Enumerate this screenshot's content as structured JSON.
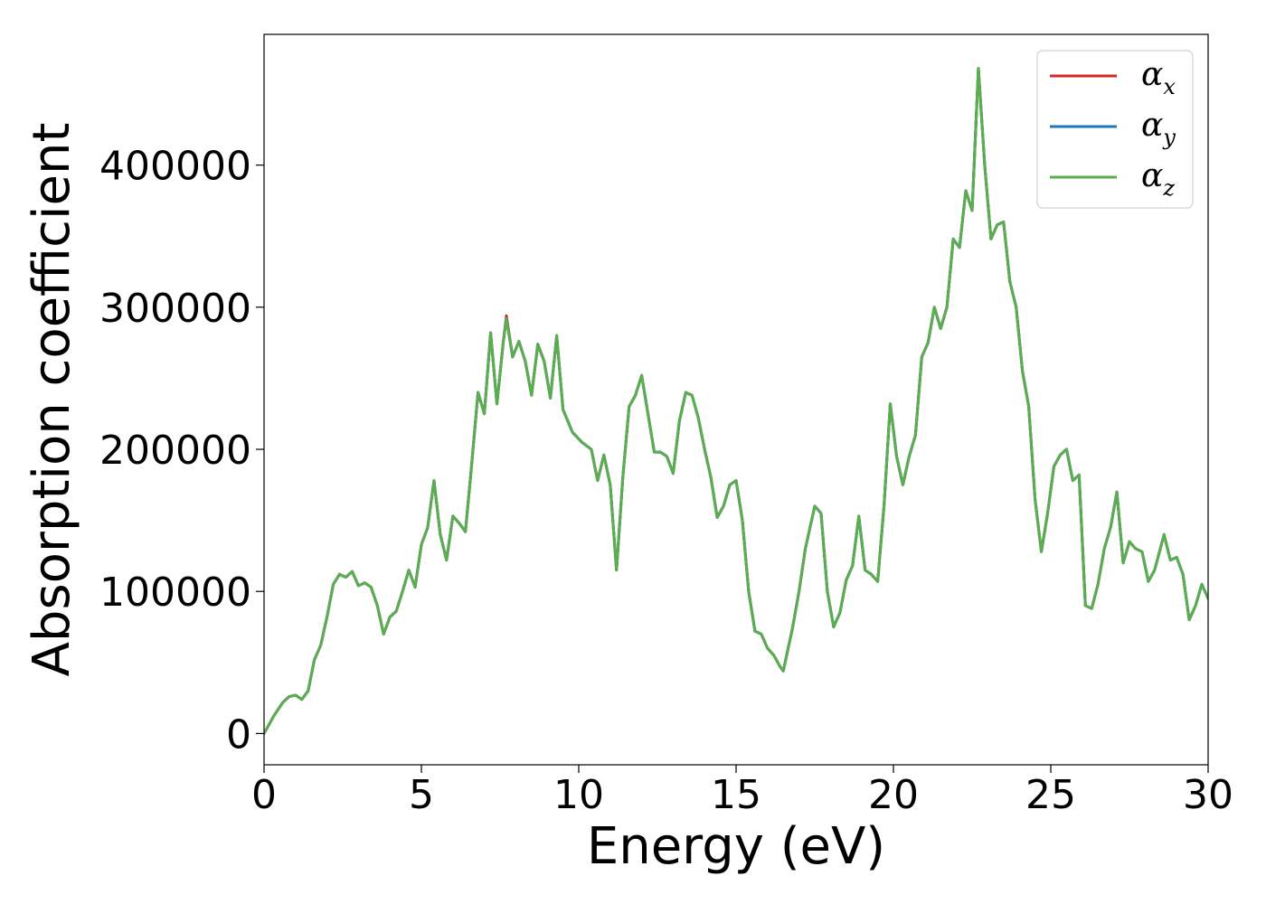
{
  "chart_data": {
    "type": "line",
    "title": "",
    "xlabel": "Energy (eV)",
    "ylabel": "Absorption coefficient",
    "xlim": [
      0,
      30
    ],
    "ylim": [
      -22000,
      492000
    ],
    "xticks": [
      0,
      5,
      10,
      15,
      20,
      25,
      30
    ],
    "yticks": [
      0,
      100000,
      200000,
      300000,
      400000
    ],
    "grid": false,
    "legend_position": "top-right",
    "x": [
      0,
      0.3,
      0.6,
      0.8,
      1.0,
      1.2,
      1.4,
      1.6,
      1.8,
      2.0,
      2.2,
      2.4,
      2.6,
      2.8,
      3.0,
      3.2,
      3.4,
      3.6,
      3.8,
      4.0,
      4.2,
      4.4,
      4.6,
      4.8,
      5.0,
      5.2,
      5.4,
      5.6,
      5.8,
      6.0,
      6.2,
      6.4,
      6.6,
      6.8,
      7.0,
      7.2,
      7.4,
      7.6,
      7.7,
      7.9,
      8.1,
      8.3,
      8.5,
      8.7,
      8.9,
      9.1,
      9.3,
      9.5,
      9.8,
      10.1,
      10.4,
      10.6,
      10.8,
      11.0,
      11.2,
      11.4,
      11.6,
      11.8,
      12.0,
      12.2,
      12.4,
      12.6,
      12.8,
      13.0,
      13.2,
      13.4,
      13.6,
      13.8,
      14.0,
      14.2,
      14.4,
      14.6,
      14.8,
      15.0,
      15.2,
      15.4,
      15.6,
      15.8,
      16.0,
      16.2,
      16.4,
      16.5,
      16.8,
      17.0,
      17.2,
      17.5,
      17.7,
      17.9,
      18.1,
      18.3,
      18.5,
      18.7,
      18.9,
      19.1,
      19.3,
      19.5,
      19.7,
      19.9,
      20.1,
      20.3,
      20.5,
      20.7,
      20.9,
      21.1,
      21.3,
      21.5,
      21.7,
      21.9,
      22.1,
      22.3,
      22.5,
      22.7,
      22.9,
      23.1,
      23.3,
      23.5,
      23.7,
      23.9,
      24.1,
      24.3,
      24.5,
      24.7,
      24.9,
      25.1,
      25.3,
      25.5,
      25.7,
      25.9,
      26.1,
      26.3,
      26.5,
      26.7,
      26.9,
      27.1,
      27.3,
      27.5,
      27.7,
      27.9,
      28.1,
      28.3,
      28.6,
      28.8,
      29.0,
      29.2,
      29.4,
      29.6,
      29.8,
      30.0
    ],
    "series": [
      {
        "name": "α",
        "subscript": "x",
        "color": "#d62728",
        "values": [
          0,
          12000,
          22000,
          26000,
          27000,
          24000,
          30000,
          52000,
          62000,
          82000,
          105000,
          112000,
          110000,
          114000,
          104000,
          106000,
          103000,
          90000,
          70000,
          82000,
          86000,
          100000,
          115000,
          103000,
          133000,
          145000,
          178000,
          140000,
          122000,
          153000,
          148000,
          142000,
          190000,
          240000,
          225000,
          282000,
          232000,
          275000,
          294000,
          265000,
          276000,
          262000,
          238000,
          274000,
          262000,
          236000,
          280000,
          228000,
          212000,
          205000,
          200000,
          178000,
          196000,
          175000,
          115000,
          180000,
          230000,
          238000,
          252000,
          225000,
          198000,
          198000,
          195000,
          183000,
          220000,
          240000,
          238000,
          222000,
          200000,
          180000,
          152000,
          160000,
          175000,
          178000,
          150000,
          100000,
          72000,
          70000,
          60000,
          55000,
          47000,
          44000,
          75000,
          100000,
          130000,
          160000,
          155000,
          100000,
          75000,
          85000,
          108000,
          118000,
          153000,
          115000,
          112000,
          107000,
          160000,
          232000,
          195000,
          175000,
          195000,
          210000,
          265000,
          275000,
          300000,
          285000,
          300000,
          348000,
          342000,
          382000,
          368000,
          468000,
          400000,
          348000,
          358000,
          360000,
          318000,
          300000,
          255000,
          230000,
          165000,
          128000,
          155000,
          188000,
          196000,
          200000,
          178000,
          182000,
          90000,
          88000,
          105000,
          130000,
          145000,
          170000,
          120000,
          135000,
          130000,
          128000,
          107000,
          115000,
          140000,
          122000,
          124000,
          112000,
          80000,
          90000,
          105000,
          95000
        ]
      },
      {
        "name": "α",
        "subscript": "y",
        "color": "#1f77b4",
        "values": [
          0,
          12000,
          22000,
          26000,
          27000,
          24000,
          30000,
          52000,
          62000,
          82000,
          105000,
          112000,
          110000,
          114000,
          104000,
          106000,
          103000,
          90000,
          70000,
          82000,
          86000,
          100000,
          115000,
          103000,
          133000,
          145000,
          178000,
          140000,
          122000,
          153000,
          148000,
          142000,
          190000,
          240000,
          225000,
          282000,
          232000,
          275000,
          292000,
          265000,
          276000,
          262000,
          238000,
          274000,
          262000,
          236000,
          280000,
          228000,
          212000,
          205000,
          200000,
          178000,
          196000,
          175000,
          115000,
          180000,
          230000,
          238000,
          252000,
          225000,
          198000,
          198000,
          195000,
          183000,
          220000,
          240000,
          238000,
          222000,
          200000,
          180000,
          152000,
          160000,
          175000,
          178000,
          150000,
          100000,
          72000,
          70000,
          60000,
          55000,
          47000,
          44000,
          75000,
          100000,
          130000,
          160000,
          155000,
          100000,
          75000,
          85000,
          108000,
          118000,
          153000,
          115000,
          112000,
          107000,
          160000,
          232000,
          195000,
          175000,
          195000,
          210000,
          265000,
          275000,
          300000,
          285000,
          300000,
          348000,
          342000,
          382000,
          368000,
          468000,
          400000,
          348000,
          358000,
          360000,
          318000,
          300000,
          255000,
          230000,
          165000,
          128000,
          155000,
          188000,
          196000,
          200000,
          178000,
          182000,
          90000,
          88000,
          105000,
          130000,
          145000,
          170000,
          120000,
          135000,
          130000,
          128000,
          107000,
          115000,
          140000,
          122000,
          124000,
          112000,
          80000,
          90000,
          105000,
          95000
        ]
      },
      {
        "name": "α",
        "subscript": "z",
        "color": "#5aae50",
        "values": [
          0,
          12000,
          22000,
          26000,
          27000,
          24000,
          30000,
          52000,
          62000,
          82000,
          105000,
          112000,
          110000,
          114000,
          104000,
          106000,
          103000,
          90000,
          70000,
          82000,
          86000,
          100000,
          115000,
          103000,
          133000,
          145000,
          178000,
          140000,
          122000,
          153000,
          148000,
          142000,
          190000,
          240000,
          225000,
          282000,
          232000,
          275000,
          292000,
          265000,
          276000,
          262000,
          238000,
          274000,
          262000,
          236000,
          280000,
          228000,
          212000,
          205000,
          200000,
          178000,
          196000,
          175000,
          115000,
          180000,
          230000,
          238000,
          252000,
          225000,
          198000,
          198000,
          195000,
          183000,
          220000,
          240000,
          238000,
          222000,
          200000,
          180000,
          152000,
          160000,
          175000,
          178000,
          150000,
          100000,
          72000,
          70000,
          60000,
          55000,
          47000,
          44000,
          75000,
          100000,
          130000,
          160000,
          155000,
          100000,
          75000,
          85000,
          108000,
          118000,
          153000,
          115000,
          112000,
          107000,
          160000,
          232000,
          195000,
          175000,
          195000,
          210000,
          265000,
          275000,
          300000,
          285000,
          300000,
          348000,
          342000,
          382000,
          368000,
          468000,
          400000,
          348000,
          358000,
          360000,
          318000,
          300000,
          255000,
          230000,
          165000,
          128000,
          155000,
          188000,
          196000,
          200000,
          178000,
          182000,
          90000,
          88000,
          105000,
          130000,
          145000,
          170000,
          120000,
          135000,
          130000,
          128000,
          107000,
          115000,
          140000,
          122000,
          124000,
          112000,
          80000,
          90000,
          105000,
          95000
        ]
      }
    ]
  }
}
